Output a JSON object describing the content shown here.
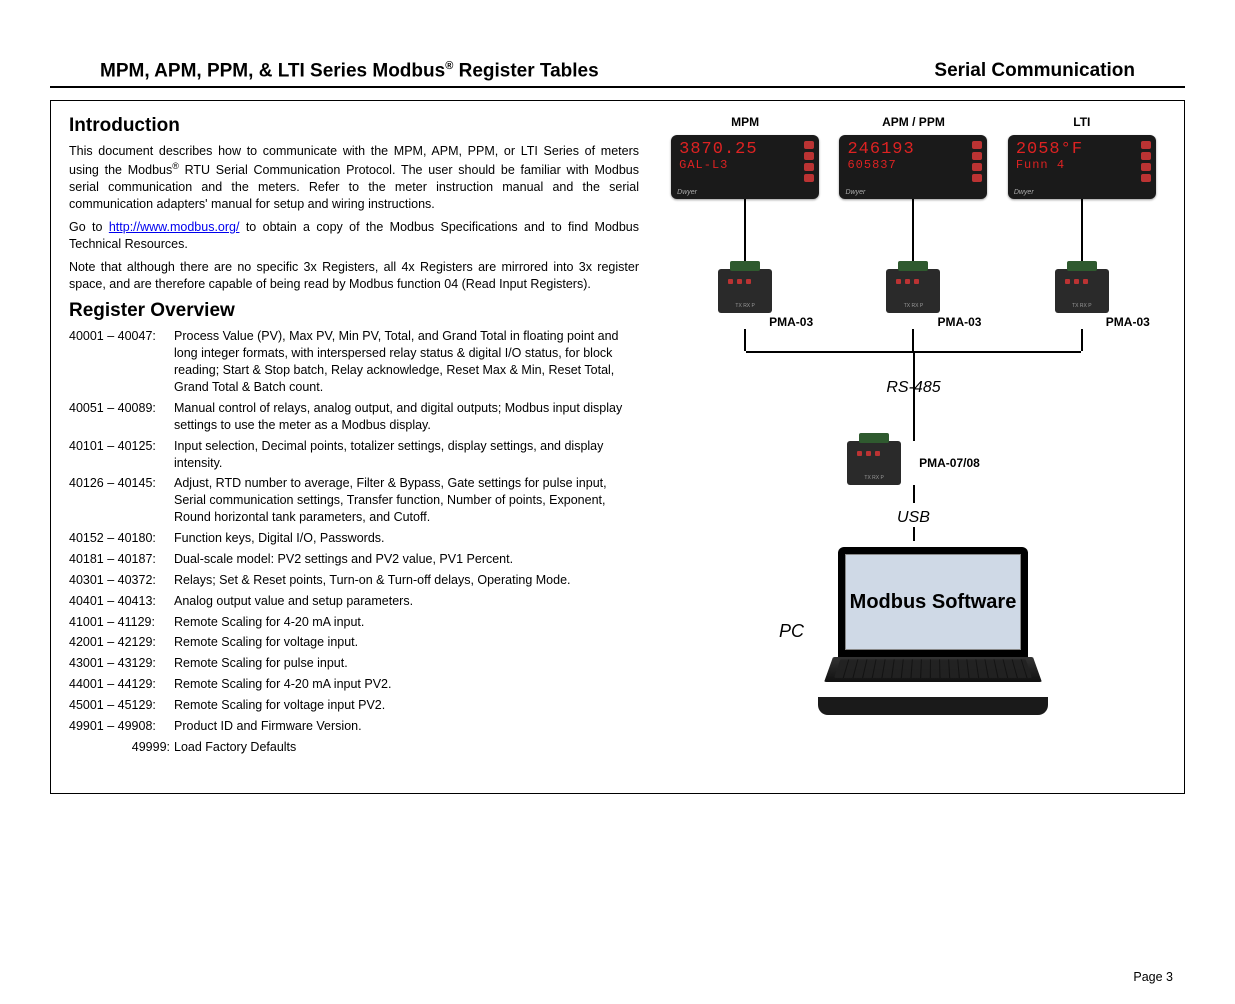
{
  "header": {
    "title_left": "MPM, APM, PPM, & LTI Series Modbus",
    "title_left_suffix": " Register Tables",
    "title_right": "Serial Communication"
  },
  "intro": {
    "heading": "Introduction",
    "p1a": "This document describes how to communicate with the MPM, APM, PPM, or LTI Series of meters using the Modbus",
    "p1b": " RTU Serial Communication Protocol. The user should be familiar with Modbus serial communication and the meters. Refer to the meter instruction manual and the serial communication adapters' manual for setup and wiring instructions.",
    "p2a": "Go to ",
    "p2link": "http://www.modbus.org/",
    "p2b": " to obtain a copy of the Modbus Specifications and to find Modbus Technical Resources.",
    "p3": "Note that although there are no specific 3x Registers, all 4x Registers are mirrored into 3x register space, and are therefore capable of being read by Modbus function 04 (Read Input Registers)."
  },
  "overview": {
    "heading": "Register Overview",
    "items": [
      {
        "range": "40001 – 40047:",
        "desc": "Process Value (PV), Max PV, Min PV, Total, and Grand Total in floating point and long integer formats, with interspersed relay status & digital I/O status, for block reading; Start & Stop batch, Relay acknowledge, Reset Max & Min, Reset Total, Grand Total & Batch count."
      },
      {
        "range": "40051 – 40089:",
        "desc": "Manual control of relays, analog output, and digital outputs; Modbus input display settings to use the meter as a Modbus display."
      },
      {
        "range": "40101 – 40125:",
        "desc": "Input selection, Decimal points, totalizer settings, display settings, and display intensity."
      },
      {
        "range": "40126 – 40145:",
        "desc": "Adjust, RTD number to average, Filter & Bypass, Gate settings for pulse input, Serial communication settings, Transfer function, Number of points, Exponent, Round horizontal tank parameters, and Cutoff."
      },
      {
        "range": "40152 – 40180:",
        "desc": "Function keys, Digital I/O, Passwords."
      },
      {
        "range": "40181 – 40187:",
        "desc": "Dual-scale model: PV2 settings and PV2 value, PV1 Percent."
      },
      {
        "range": "40301 – 40372:",
        "desc": "Relays; Set & Reset points, Turn-on & Turn-off delays, Operating Mode."
      },
      {
        "range": "40401 – 40413:",
        "desc": "Analog output value and setup parameters."
      },
      {
        "range": "41001 – 41129:",
        "desc": "Remote Scaling for 4-20 mA input."
      },
      {
        "range": "42001 – 42129:",
        "desc": "Remote Scaling for voltage input."
      },
      {
        "range": "43001 – 43129:",
        "desc": "Remote Scaling for pulse input."
      },
      {
        "range": "44001 – 44129:",
        "desc": "Remote Scaling for 4-20 mA input PV2."
      },
      {
        "range": "45001 – 45129:",
        "desc": "Remote Scaling for voltage input PV2."
      },
      {
        "range": "49901 – 49908:",
        "desc": "Product ID and Firmware Version."
      },
      {
        "range": "49999:",
        "desc": "Load Factory Defaults"
      }
    ]
  },
  "diagram": {
    "meters": [
      {
        "label": "MPM",
        "line1": "3870.25",
        "line2": "GAL-L3",
        "pma": "PMA-03"
      },
      {
        "label": "APM / PPM",
        "line1": "246193",
        "line2": "605837",
        "pma": "PMA-03"
      },
      {
        "label": "LTI",
        "line1": "2058°F",
        "line2": "Funn 4",
        "pma": "PMA-03"
      }
    ],
    "bus_label": "RS-485",
    "hub_adapter": "PMA-07/08",
    "usb_label": "USB",
    "pc_label": "PC",
    "screen_text": "Modbus Software",
    "colors": {
      "meter_bg": "#1a1a1a",
      "segment": "#d22",
      "adapter_bg": "#2a2a2a",
      "port": "#2f5a2f",
      "screen": "#cfd9e6"
    }
  },
  "footer": {
    "page": "Page 3"
  }
}
